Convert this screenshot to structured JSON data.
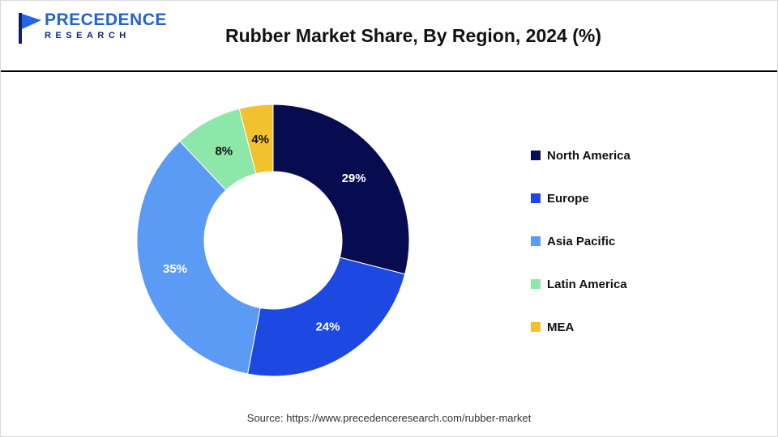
{
  "header": {
    "logo": {
      "line1": "PRECEDENCE",
      "line2": "RESEARCH"
    },
    "title": "Rubber Market Share, By Region, 2024 (%)"
  },
  "chart_data": {
    "type": "pie",
    "donut": true,
    "title": "Rubber Market Share, By Region, 2024 (%)",
    "categories": [
      "North America",
      "Europe",
      "Asia Pacific",
      "Latin America",
      "MEA"
    ],
    "values": [
      29,
      24,
      35,
      8,
      4
    ],
    "value_labels": [
      "29%",
      "24%",
      "35%",
      "8%",
      "4%"
    ],
    "colors": [
      "#070B4F",
      "#1E48E2",
      "#5B9BF5",
      "#8CE7A8",
      "#F2C12E"
    ],
    "label_colors": [
      "#ffffff",
      "#ffffff",
      "#ffffff",
      "#111111",
      "#111111"
    ],
    "start_angle": 0,
    "direction": "clockwise",
    "legend_position": "right"
  },
  "footer": {
    "source": "Source: https://www.precedenceresearch.com/rubber-market"
  }
}
